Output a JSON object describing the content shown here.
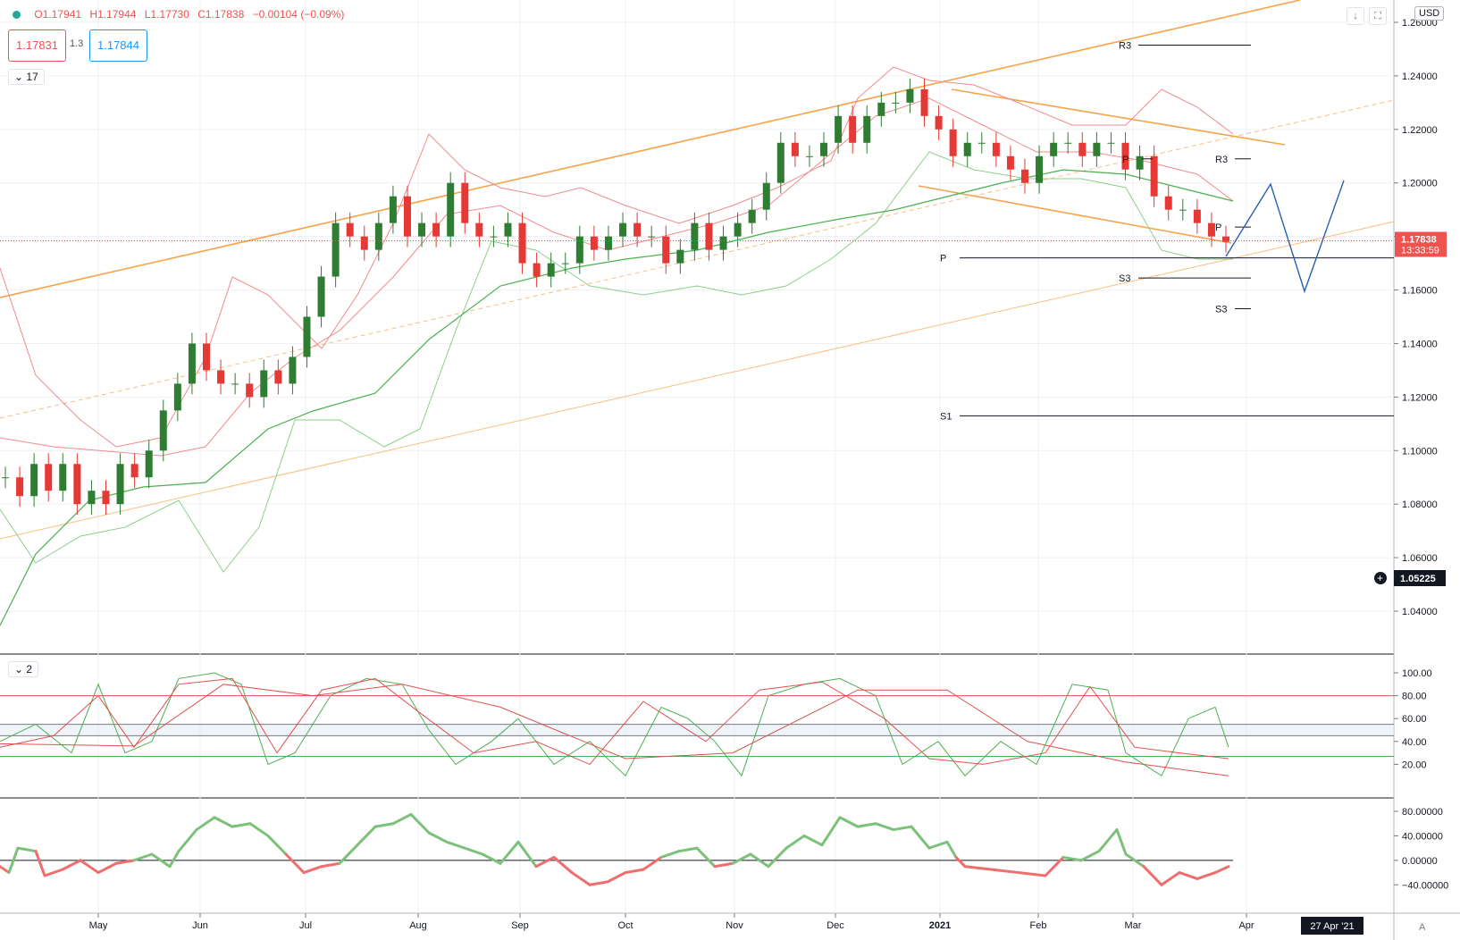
{
  "header": {
    "ohlc": {
      "o": "O1.17941",
      "h": "H1.17944",
      "l": "L1.17730",
      "c": "C1.17838",
      "chg": "−0.00104 (−0.09%)"
    },
    "sell_price": "1.17831",
    "spread": "1.3",
    "buy_price": "1.17844",
    "indicators_toggle": "17",
    "pane2_toggle": "2",
    "currency": "USD",
    "autoscale": "A",
    "icons": [
      "arrow-down-icon",
      "fullscreen-icon"
    ]
  },
  "colors": {
    "up": "#26a69a",
    "down": "#ef5350",
    "candle_up": "#2e7d32",
    "candle_down": "#e53935",
    "channel": "#f6a34a",
    "bb_red": "#f28b8b",
    "bb_green": "#8bcf8b",
    "ma_green": "#4caf50",
    "projection": "#2b5fb0",
    "pivot": "#131722"
  },
  "price_axis": {
    "labels": [
      "1.26000",
      "1.24000",
      "1.22000",
      "1.20000",
      "1.18000",
      "1.16000",
      "1.14000",
      "1.12000",
      "1.10000",
      "1.08000",
      "1.06000",
      "1.04000"
    ],
    "current_price": "1.17838",
    "countdown": "13:33:59",
    "crosshair_price": "1.05225"
  },
  "time_axis": {
    "labels": [
      "May",
      "Jun",
      "Jul",
      "Aug",
      "Sep",
      "Oct",
      "Nov",
      "Dec",
      "2021",
      "Feb",
      "Mar",
      "Apr"
    ],
    "crosshair_time": "27 Apr '21"
  },
  "pivots": [
    {
      "label": "R3",
      "price": 1.2515,
      "x_start_label": "R3"
    },
    {
      "label": "R3",
      "price": 1.209
    },
    {
      "label": "P",
      "price": 1.172
    },
    {
      "label": "S3",
      "price": 1.1645
    },
    {
      "label": "S3",
      "price": 1.153
    },
    {
      "label": "S1",
      "price": 1.113
    },
    {
      "label": "P",
      "price": 1.209
    },
    {
      "label": "P",
      "price": 1.1835
    }
  ],
  "oscillator": {
    "labels": [
      "100.00",
      "80.00",
      "60.00",
      "40.00",
      "20.00"
    ],
    "levels": [
      80,
      55,
      45,
      27
    ]
  },
  "momentum": {
    "labels": [
      "80.00000",
      "40.00000",
      "0.00000",
      "−40.00000"
    ]
  },
  "chart_data": [
    {
      "type": "candlestick",
      "title": "",
      "x_start": "2020-04",
      "x_end": "2021-03",
      "ylim": [
        1.025,
        1.265
      ],
      "close_series": [
        1.09,
        1.083,
        1.095,
        1.085,
        1.095,
        1.08,
        1.085,
        1.08,
        1.095,
        1.09,
        1.1,
        1.115,
        1.125,
        1.14,
        1.13,
        1.125,
        1.125,
        1.12,
        1.13,
        1.125,
        1.135,
        1.15,
        1.165,
        1.185,
        1.18,
        1.175,
        1.185,
        1.195,
        1.18,
        1.185,
        1.18,
        1.2,
        1.185,
        1.18,
        1.18,
        1.185,
        1.17,
        1.165,
        1.17,
        1.17,
        1.18,
        1.175,
        1.18,
        1.185,
        1.18,
        1.18,
        1.17,
        1.175,
        1.185,
        1.175,
        1.18,
        1.185,
        1.19,
        1.2,
        1.215,
        1.21,
        1.21,
        1.215,
        1.225,
        1.215,
        1.225,
        1.23,
        1.23,
        1.235,
        1.225,
        1.22,
        1.21,
        1.215,
        1.215,
        1.21,
        1.205,
        1.2,
        1.21,
        1.215,
        1.215,
        1.21,
        1.215,
        1.215,
        1.205,
        1.21,
        1.195,
        1.19,
        1.19,
        1.185,
        1.18,
        1.178
      ]
    },
    {
      "type": "line",
      "name": "",
      "ylim": [
        0,
        100
      ]
    },
    {
      "type": "area",
      "name": "",
      "ylim": [
        -60,
        100
      ]
    }
  ]
}
